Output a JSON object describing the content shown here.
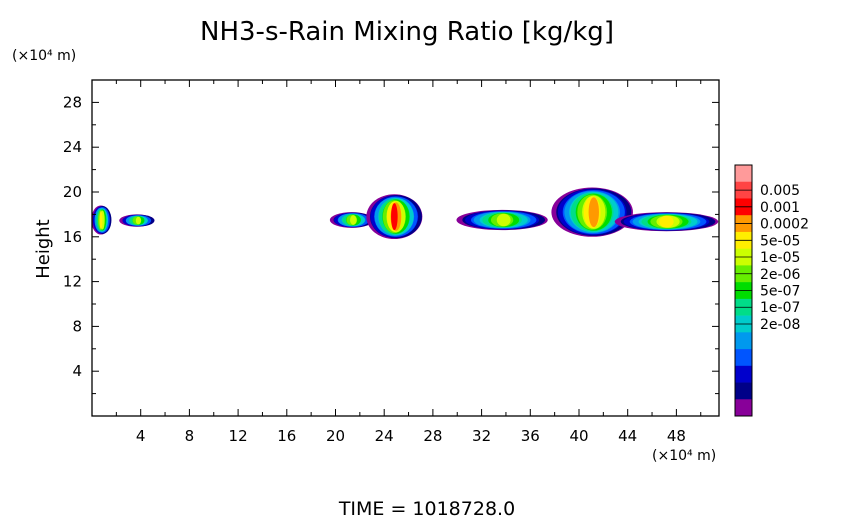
{
  "chart_data": {
    "type": "heatmap",
    "title": "NH3-s-Rain Mixing Ratio [kg/kg]",
    "ylabel": "Height",
    "x_unit": "(×10⁴ m)",
    "y_unit": "(×10⁴ m)",
    "xlim": [
      0,
      51.5
    ],
    "ylim": [
      0,
      30
    ],
    "x_ticks": [
      4,
      8,
      12,
      16,
      20,
      24,
      28,
      32,
      36,
      40,
      44,
      48
    ],
    "y_ticks": [
      4,
      8,
      12,
      16,
      20,
      24,
      28
    ],
    "footer": "TIME  =  1018728.0",
    "colorbar": {
      "labels": [
        "0.005",
        "0.001",
        "0.0002",
        "5e-05",
        "1e-05",
        "2e-06",
        "5e-07",
        "1e-07",
        "2e-08"
      ],
      "colors": [
        "#ff9a9a",
        "#ff4444",
        "#ff0000",
        "#ff9900",
        "#ffee00",
        "#ccff00",
        "#66ee00",
        "#00dd00",
        "#00dd88",
        "#00cccc",
        "#0099ee",
        "#0055ff",
        "#0000cc",
        "#000088",
        "#880099"
      ]
    },
    "cells": [
      {
        "x": [
          0.0,
          1.6
        ],
        "y": [
          16.2,
          18.8
        ],
        "peak": 4
      },
      {
        "x": [
          2.3,
          5.2
        ],
        "y": [
          16.9,
          18.0
        ],
        "peak": 5
      },
      {
        "x": [
          19.6,
          23.2
        ],
        "y": [
          16.8,
          18.2
        ],
        "peak": 5
      },
      {
        "x": [
          22.6,
          27.2
        ],
        "y": [
          15.8,
          19.8
        ],
        "peak": 2
      },
      {
        "x": [
          30.0,
          37.5
        ],
        "y": [
          16.6,
          18.4
        ],
        "peak": 5
      },
      {
        "x": [
          37.8,
          44.5
        ],
        "y": [
          16.0,
          20.4
        ],
        "peak": 3
      },
      {
        "x": [
          43.0,
          51.5
        ],
        "y": [
          16.5,
          18.2
        ],
        "peak": 4
      }
    ]
  }
}
